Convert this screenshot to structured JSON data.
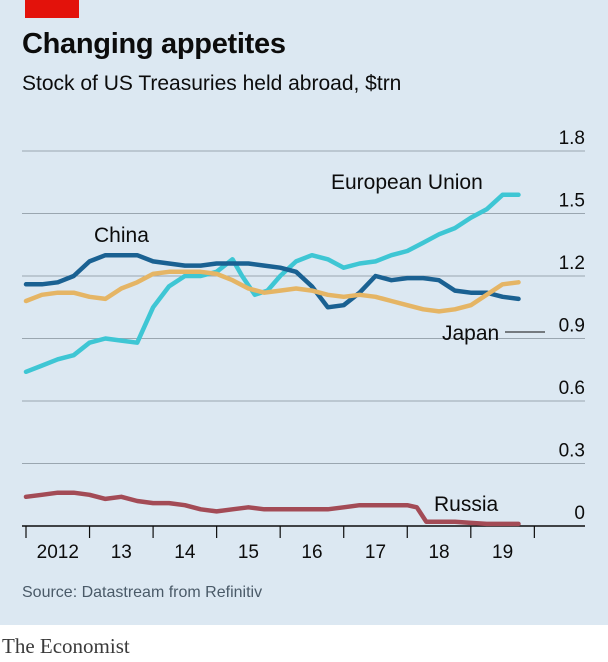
{
  "title": "Changing appetites",
  "subtitle": "Stock of US Treasuries held abroad, $trn",
  "source": "Source: Datastream from Refinitiv",
  "brand": "The Economist",
  "colors": {
    "background": "#dce8f2",
    "accent": "#e3120b",
    "grid": "#9aa6b0"
  },
  "chart_data": {
    "type": "line",
    "y_ticks": [
      "1.8",
      "1.5",
      "1.2",
      "0.9",
      "0.6",
      "0.3",
      "0"
    ],
    "y_tick_values": [
      1.8,
      1.5,
      1.2,
      0.9,
      0.6,
      0.3,
      0
    ],
    "ylim": [
      0,
      1.8
    ],
    "x_ticks": [
      "2012",
      "13",
      "14",
      "15",
      "16",
      "17",
      "18",
      "19"
    ],
    "xlim": [
      2012,
      2019.9
    ],
    "grid": true,
    "series": [
      {
        "name": "European Union",
        "color": "#3ec6d4",
        "points": [
          [
            2012.0,
            0.74
          ],
          [
            2012.25,
            0.77
          ],
          [
            2012.5,
            0.8
          ],
          [
            2012.75,
            0.82
          ],
          [
            2013.0,
            0.88
          ],
          [
            2013.25,
            0.9
          ],
          [
            2013.5,
            0.89
          ],
          [
            2013.75,
            0.88
          ],
          [
            2014.0,
            1.05
          ],
          [
            2014.25,
            1.15
          ],
          [
            2014.5,
            1.2
          ],
          [
            2014.75,
            1.2
          ],
          [
            2015.0,
            1.22
          ],
          [
            2015.25,
            1.28
          ],
          [
            2015.4,
            1.2
          ],
          [
            2015.6,
            1.11
          ],
          [
            2015.8,
            1.13
          ],
          [
            2016.0,
            1.2
          ],
          [
            2016.25,
            1.27
          ],
          [
            2016.5,
            1.3
          ],
          [
            2016.75,
            1.28
          ],
          [
            2017.0,
            1.24
          ],
          [
            2017.25,
            1.26
          ],
          [
            2017.5,
            1.27
          ],
          [
            2017.75,
            1.3
          ],
          [
            2018.0,
            1.32
          ],
          [
            2018.25,
            1.36
          ],
          [
            2018.5,
            1.4
          ],
          [
            2018.75,
            1.43
          ],
          [
            2019.0,
            1.48
          ],
          [
            2019.25,
            1.52
          ],
          [
            2019.5,
            1.59
          ],
          [
            2019.75,
            1.59
          ]
        ]
      },
      {
        "name": "China",
        "color": "#1a6192",
        "points": [
          [
            2012.0,
            1.16
          ],
          [
            2012.25,
            1.16
          ],
          [
            2012.5,
            1.17
          ],
          [
            2012.75,
            1.2
          ],
          [
            2013.0,
            1.27
          ],
          [
            2013.25,
            1.3
          ],
          [
            2013.5,
            1.3
          ],
          [
            2013.75,
            1.3
          ],
          [
            2014.0,
            1.27
          ],
          [
            2014.25,
            1.26
          ],
          [
            2014.5,
            1.25
          ],
          [
            2014.75,
            1.25
          ],
          [
            2015.0,
            1.26
          ],
          [
            2015.25,
            1.26
          ],
          [
            2015.5,
            1.26
          ],
          [
            2015.75,
            1.25
          ],
          [
            2016.0,
            1.24
          ],
          [
            2016.25,
            1.22
          ],
          [
            2016.5,
            1.15
          ],
          [
            2016.75,
            1.05
          ],
          [
            2017.0,
            1.06
          ],
          [
            2017.25,
            1.12
          ],
          [
            2017.5,
            1.2
          ],
          [
            2017.75,
            1.18
          ],
          [
            2018.0,
            1.19
          ],
          [
            2018.25,
            1.19
          ],
          [
            2018.5,
            1.18
          ],
          [
            2018.75,
            1.13
          ],
          [
            2019.0,
            1.12
          ],
          [
            2019.25,
            1.12
          ],
          [
            2019.5,
            1.1
          ],
          [
            2019.75,
            1.09
          ]
        ]
      },
      {
        "name": "Japan",
        "color": "#e5b565",
        "points": [
          [
            2012.0,
            1.08
          ],
          [
            2012.25,
            1.11
          ],
          [
            2012.5,
            1.12
          ],
          [
            2012.75,
            1.12
          ],
          [
            2013.0,
            1.1
          ],
          [
            2013.25,
            1.09
          ],
          [
            2013.5,
            1.14
          ],
          [
            2013.75,
            1.17
          ],
          [
            2014.0,
            1.21
          ],
          [
            2014.25,
            1.22
          ],
          [
            2014.5,
            1.22
          ],
          [
            2014.75,
            1.22
          ],
          [
            2015.0,
            1.21
          ],
          [
            2015.25,
            1.18
          ],
          [
            2015.5,
            1.14
          ],
          [
            2015.75,
            1.12
          ],
          [
            2016.0,
            1.13
          ],
          [
            2016.25,
            1.14
          ],
          [
            2016.5,
            1.13
          ],
          [
            2016.75,
            1.11
          ],
          [
            2017.0,
            1.1
          ],
          [
            2017.25,
            1.11
          ],
          [
            2017.5,
            1.1
          ],
          [
            2017.75,
            1.08
          ],
          [
            2018.0,
            1.06
          ],
          [
            2018.25,
            1.04
          ],
          [
            2018.5,
            1.03
          ],
          [
            2018.75,
            1.04
          ],
          [
            2019.0,
            1.06
          ],
          [
            2019.25,
            1.11
          ],
          [
            2019.5,
            1.16
          ],
          [
            2019.75,
            1.17
          ]
        ]
      },
      {
        "name": "Russia",
        "color": "#a34b56",
        "points": [
          [
            2012.0,
            0.14
          ],
          [
            2012.25,
            0.15
          ],
          [
            2012.5,
            0.16
          ],
          [
            2012.75,
            0.16
          ],
          [
            2013.0,
            0.15
          ],
          [
            2013.25,
            0.13
          ],
          [
            2013.5,
            0.14
          ],
          [
            2013.75,
            0.12
          ],
          [
            2014.0,
            0.11
          ],
          [
            2014.25,
            0.11
          ],
          [
            2014.5,
            0.1
          ],
          [
            2014.75,
            0.08
          ],
          [
            2015.0,
            0.07
          ],
          [
            2015.25,
            0.08
          ],
          [
            2015.5,
            0.09
          ],
          [
            2015.75,
            0.08
          ],
          [
            2016.0,
            0.08
          ],
          [
            2016.25,
            0.08
          ],
          [
            2016.5,
            0.08
          ],
          [
            2016.75,
            0.08
          ],
          [
            2017.0,
            0.09
          ],
          [
            2017.25,
            0.1
          ],
          [
            2017.5,
            0.1
          ],
          [
            2017.75,
            0.1
          ],
          [
            2018.0,
            0.1
          ],
          [
            2018.15,
            0.09
          ],
          [
            2018.3,
            0.02
          ],
          [
            2018.5,
            0.02
          ],
          [
            2018.75,
            0.02
          ],
          [
            2019.0,
            0.015
          ],
          [
            2019.25,
            0.01
          ],
          [
            2019.5,
            0.01
          ],
          [
            2019.75,
            0.01
          ]
        ]
      }
    ]
  }
}
